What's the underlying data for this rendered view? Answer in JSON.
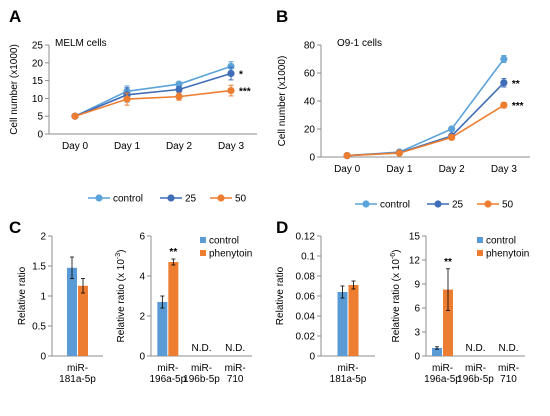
{
  "colors": {
    "control_line": "#5BA3D9",
    "dose25": "#3F6DB7",
    "dose50": "#ED7D31",
    "control_bar": "#5B9BD5",
    "phenytoin_bar": "#ED7D31",
    "axis": "#8c8c8c",
    "errorbar": "#000000"
  },
  "panels": {
    "A": {
      "letter": "A"
    },
    "B": {
      "letter": "B"
    },
    "C": {
      "letter": "C"
    },
    "D": {
      "letter": "D"
    }
  },
  "chart_data": [
    {
      "id": "A",
      "type": "line",
      "annotation": "MELM cells",
      "ylabel": "Cell number (x1000)",
      "xlabel": "",
      "categories": [
        "Day 0",
        "Day 1",
        "Day 2",
        "Day 3"
      ],
      "ylim": [
        0,
        25
      ],
      "yticks": [
        0,
        5,
        10,
        15,
        20,
        25
      ],
      "grid": false,
      "legend_position": "bottom",
      "series": [
        {
          "name": "control",
          "color_key": "control_line",
          "values": [
            5,
            12,
            14,
            19
          ],
          "errors": [
            0.3,
            1.5,
            0.6,
            1.3
          ],
          "sig": ""
        },
        {
          "name": "25",
          "color_key": "dose25",
          "values": [
            5,
            11,
            12.5,
            17
          ],
          "errors": [
            0.3,
            2,
            0.8,
            1.8
          ],
          "sig": "*"
        },
        {
          "name": "50",
          "color_key": "dose50",
          "values": [
            5,
            9.8,
            10.5,
            12.2
          ],
          "errors": [
            0.3,
            1.7,
            1.0,
            1.5
          ],
          "sig": "***"
        }
      ]
    },
    {
      "id": "B",
      "type": "line",
      "annotation": "O9-1 cells",
      "ylabel": "Cell number (x1000)",
      "xlabel": "",
      "categories": [
        "Day 0",
        "Day 1",
        "Day 2",
        "Day 3"
      ],
      "ylim": [
        0,
        80
      ],
      "yticks": [
        0,
        20,
        40,
        60,
        80
      ],
      "grid": false,
      "legend_position": "bottom",
      "series": [
        {
          "name": "control",
          "color_key": "control_line",
          "values": [
            1,
            3.5,
            20,
            70
          ],
          "errors": [
            0.2,
            0.5,
            1.5,
            2.5
          ],
          "sig": ""
        },
        {
          "name": "25",
          "color_key": "dose25",
          "values": [
            1,
            3,
            15,
            53
          ],
          "errors": [
            0.2,
            0.5,
            1.2,
            3
          ],
          "sig": "**"
        },
        {
          "name": "50",
          "color_key": "dose50",
          "values": [
            1,
            2.8,
            14,
            37
          ],
          "errors": [
            0.2,
            0.4,
            1,
            2
          ],
          "sig": "***"
        }
      ]
    },
    {
      "id": "C1",
      "type": "bar",
      "ylabel": "Relative ratio",
      "categories": [
        [
          "miR-",
          "181a-5p"
        ]
      ],
      "ylim": [
        0,
        2
      ],
      "yticks": [
        0,
        0.5,
        1,
        1.5,
        2
      ],
      "ytick_labels": [
        "0",
        "0.5",
        "1",
        "1.5",
        "2"
      ],
      "series": [
        {
          "name": "control",
          "color_key": "control_bar",
          "values": [
            1.47
          ],
          "errors": [
            0.18
          ]
        },
        {
          "name": "phenytoin",
          "color_key": "phenytoin_bar",
          "values": [
            1.17
          ],
          "errors": [
            0.12
          ]
        }
      ],
      "labels": [
        ""
      ],
      "sig": [
        ""
      ]
    },
    {
      "id": "C2",
      "type": "bar",
      "ylabel_main": "Relative ratio (x 10",
      "ylabel_sup": "-3",
      "ylabel_end": ")",
      "categories": [
        [
          "miR-",
          "196a-5p"
        ],
        [
          "miR-",
          "196b-5p"
        ],
        [
          "miR-",
          "710"
        ]
      ],
      "ylim": [
        0,
        6
      ],
      "yticks": [
        0,
        2,
        4,
        6
      ],
      "ytick_labels": [
        "0",
        "2",
        "4",
        "6"
      ],
      "legend_position": "top-right",
      "series": [
        {
          "name": "control",
          "color_key": "control_bar",
          "values": [
            2.7,
            null,
            null
          ],
          "errors": [
            0.3,
            null,
            null
          ]
        },
        {
          "name": "phenytoin",
          "color_key": "phenytoin_bar",
          "values": [
            4.7,
            null,
            null
          ],
          "errors": [
            0.15,
            null,
            null
          ]
        }
      ],
      "labels": [
        "",
        "N.D.",
        "N.D."
      ],
      "sig": [
        "**",
        "",
        ""
      ]
    },
    {
      "id": "D1",
      "type": "bar",
      "ylabel": "Relative ratio",
      "categories": [
        [
          "miR-",
          "181a-5p"
        ]
      ],
      "ylim": [
        0,
        0.12
      ],
      "yticks": [
        0,
        0.02,
        0.04,
        0.06,
        0.08,
        0.1,
        0.12
      ],
      "ytick_labels": [
        "0",
        "0.02",
        "0.04",
        "0.06",
        "0.08",
        "0.1",
        "0.12"
      ],
      "series": [
        {
          "name": "control",
          "color_key": "control_bar",
          "values": [
            0.064
          ],
          "errors": [
            0.006
          ]
        },
        {
          "name": "phenytoin",
          "color_key": "phenytoin_bar",
          "values": [
            0.071
          ],
          "errors": [
            0.004
          ]
        }
      ],
      "labels": [
        ""
      ],
      "sig": [
        ""
      ]
    },
    {
      "id": "D2",
      "type": "bar",
      "ylabel_main": "Relative ratio (x 10",
      "ylabel_sup": "-6",
      "ylabel_end": ")",
      "categories": [
        [
          "miR-",
          "196a-5p"
        ],
        [
          "miR-",
          "196b-5p"
        ],
        [
          "miR-",
          "710"
        ]
      ],
      "ylim": [
        0,
        15
      ],
      "yticks": [
        0,
        3,
        6,
        9,
        12,
        15
      ],
      "ytick_labels": [
        "0",
        "3",
        "6",
        "9",
        "12",
        "15"
      ],
      "legend_position": "top-right",
      "series": [
        {
          "name": "control",
          "color_key": "control_bar",
          "values": [
            1.0,
            null,
            null
          ],
          "errors": [
            0.15,
            null,
            null
          ]
        },
        {
          "name": "phenytoin",
          "color_key": "phenytoin_bar",
          "values": [
            8.3,
            null,
            null
          ],
          "errors": [
            2.6,
            null,
            null
          ]
        }
      ],
      "labels": [
        "",
        "N.D.",
        "N.D."
      ],
      "sig": [
        "**",
        "",
        ""
      ]
    }
  ]
}
